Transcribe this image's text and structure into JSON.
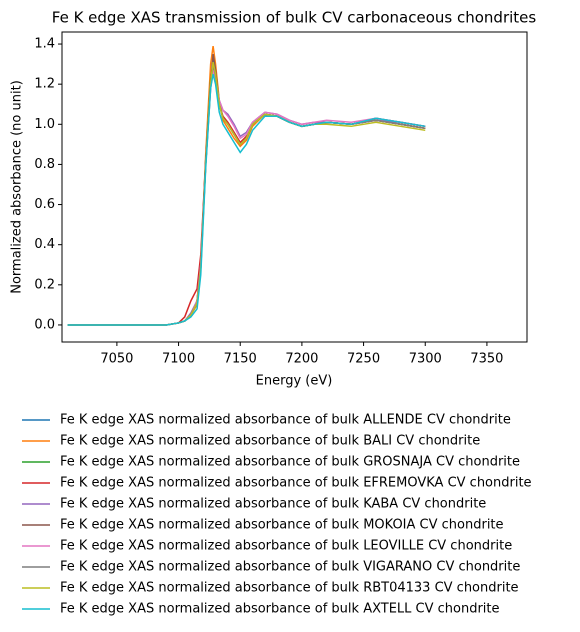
{
  "chart_data": {
    "type": "line",
    "title": "Fe K edge XAS transmission of bulk CV carbonaceous chondrites",
    "xlabel": "Energy (eV)",
    "ylabel": "Normalized absorbance (no unit)",
    "x": [
      7010,
      7050,
      7090,
      7100,
      7105,
      7110,
      7115,
      7118,
      7122,
      7126,
      7128,
      7130,
      7133,
      7136,
      7140,
      7145,
      7150,
      7155,
      7160,
      7170,
      7180,
      7190,
      7200,
      7210,
      7220,
      7240,
      7260,
      7280,
      7300
    ],
    "xlim": [
      7005.5,
      7382.5
    ],
    "ylim": [
      -0.085,
      1.46
    ],
    "xticks": [
      7050,
      7100,
      7150,
      7200,
      7250,
      7300,
      7350
    ],
    "yticks": [
      {
        "value": 0,
        "label": "0.0"
      },
      0.2,
      0.4,
      0.6,
      0.8,
      {
        "value": 1,
        "label": "1.0"
      },
      1.2,
      1.4
    ],
    "legend": "below",
    "series": [
      {
        "name": "Fe K edge XAS normalized absorbance of bulk ALLENDE CV chondrite",
        "color": "#1f77b4",
        "values": [
          0,
          0,
          0,
          0.01,
          0.02,
          0.05,
          0.12,
          0.3,
          0.8,
          1.2,
          1.32,
          1.25,
          1.1,
          1.03,
          1.0,
          0.95,
          0.9,
          0.93,
          1.0,
          1.05,
          1.04,
          1.01,
          0.99,
          1.0,
          1.01,
          1.0,
          1.03,
          1.01,
          0.99
        ]
      },
      {
        "name": "Fe K edge XAS normalized absorbance of bulk BALI CV chondrite",
        "color": "#ff7f0e",
        "values": [
          0,
          0,
          0,
          0.01,
          0.02,
          0.05,
          0.1,
          0.28,
          0.85,
          1.3,
          1.39,
          1.3,
          1.12,
          1.02,
          0.98,
          0.93,
          0.89,
          0.92,
          0.99,
          1.05,
          1.04,
          1.01,
          0.99,
          1.0,
          1.01,
          1.0,
          1.02,
          1.0,
          0.98
        ]
      },
      {
        "name": "Fe K edge XAS normalized absorbance of bulk GROSNAJA CV chondrite",
        "color": "#2ca02c",
        "values": [
          0,
          0,
          0,
          0.01,
          0.02,
          0.05,
          0.11,
          0.3,
          0.82,
          1.22,
          1.3,
          1.24,
          1.1,
          1.03,
          1.0,
          0.95,
          0.9,
          0.93,
          1.0,
          1.05,
          1.04,
          1.01,
          0.99,
          1.0,
          1.01,
          1.0,
          1.02,
          1.0,
          0.98
        ]
      },
      {
        "name": "Fe K edge XAS normalized absorbance of bulk EFREMOVKA CV chondrite",
        "color": "#d62728",
        "values": [
          0,
          0,
          0,
          0.01,
          0.04,
          0.12,
          0.18,
          0.35,
          0.82,
          1.2,
          1.3,
          1.24,
          1.1,
          1.04,
          1.01,
          0.96,
          0.91,
          0.94,
          1.0,
          1.05,
          1.04,
          1.01,
          0.99,
          1.0,
          1.01,
          1.0,
          1.02,
          1.0,
          0.98
        ]
      },
      {
        "name": "Fe K edge XAS normalized absorbance of bulk KABA CV chondrite",
        "color": "#9467bd",
        "values": [
          0,
          0,
          0,
          0.01,
          0.02,
          0.06,
          0.12,
          0.3,
          0.8,
          1.18,
          1.28,
          1.24,
          1.12,
          1.07,
          1.05,
          1.0,
          0.94,
          0.96,
          1.01,
          1.06,
          1.05,
          1.02,
          1.0,
          1.01,
          1.01,
          1.0,
          1.02,
          1.01,
          0.99
        ]
      },
      {
        "name": "Fe K edge XAS normalized absorbance of bulk MOKOIA CV chondrite",
        "color": "#8c564b",
        "values": [
          0,
          0,
          0,
          0.01,
          0.02,
          0.05,
          0.12,
          0.3,
          0.8,
          1.2,
          1.35,
          1.27,
          1.11,
          1.03,
          1.0,
          0.95,
          0.9,
          0.93,
          1.0,
          1.05,
          1.04,
          1.01,
          0.99,
          1.0,
          1.01,
          1.0,
          1.03,
          1.01,
          0.99
        ]
      },
      {
        "name": "Fe K edge XAS normalized absorbance of bulk LEOVILLE CV chondrite",
        "color": "#e377c2",
        "values": [
          0,
          0,
          0,
          0.01,
          0.02,
          0.05,
          0.12,
          0.3,
          0.8,
          1.18,
          1.27,
          1.23,
          1.12,
          1.07,
          1.04,
          0.99,
          0.93,
          0.95,
          1.01,
          1.06,
          1.05,
          1.02,
          1.0,
          1.01,
          1.02,
          1.01,
          1.03,
          1.01,
          0.99
        ]
      },
      {
        "name": "Fe K edge XAS normalized absorbance of bulk VIGARANO CV chondrite",
        "color": "#7f7f7f",
        "values": [
          0,
          0,
          0,
          0.01,
          0.02,
          0.05,
          0.11,
          0.28,
          0.8,
          1.2,
          1.3,
          1.24,
          1.1,
          1.03,
          1.0,
          0.95,
          0.9,
          0.93,
          1.0,
          1.05,
          1.04,
          1.01,
          0.99,
          1.0,
          1.01,
          1.0,
          1.02,
          1.0,
          0.98
        ]
      },
      {
        "name": "Fe K edge XAS normalized absorbance of bulk RBT04133 CV chondrite",
        "color": "#bcbd22",
        "values": [
          0,
          0,
          0,
          0.01,
          0.02,
          0.05,
          0.11,
          0.28,
          0.8,
          1.2,
          1.31,
          1.25,
          1.1,
          1.03,
          1.0,
          0.95,
          0.9,
          0.93,
          1.0,
          1.05,
          1.04,
          1.01,
          0.99,
          1.0,
          1.0,
          0.99,
          1.01,
          0.99,
          0.97
        ]
      },
      {
        "name": "Fe K edge XAS normalized absorbance of bulk AXTELL CV chondrite",
        "color": "#17becf",
        "values": [
          0,
          0,
          0,
          0.01,
          0.02,
          0.04,
          0.08,
          0.25,
          0.78,
          1.18,
          1.25,
          1.2,
          1.06,
          1.0,
          0.96,
          0.91,
          0.86,
          0.9,
          0.97,
          1.04,
          1.04,
          1.01,
          0.99,
          1.0,
          1.01,
          1.0,
          1.03,
          1.01,
          0.99
        ]
      }
    ]
  }
}
